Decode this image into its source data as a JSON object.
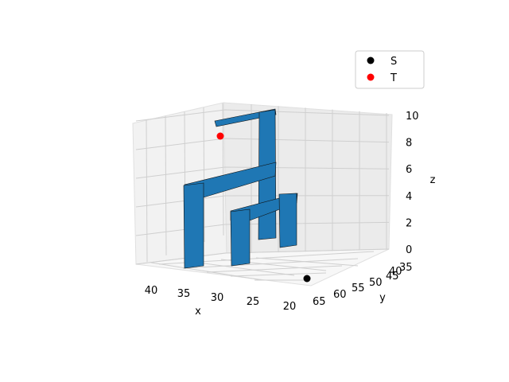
{
  "chart_data": {
    "type": "scatter",
    "projection": "3d",
    "xlabel": "x",
    "ylabel": "y",
    "zlabel": "z",
    "x_ticks": [
      40,
      35,
      30,
      25,
      20
    ],
    "y_ticks": [
      65,
      60,
      55,
      50,
      45,
      40,
      35
    ],
    "z_ticks": [
      0,
      2,
      4,
      6,
      8,
      10
    ],
    "xlim": [
      18,
      42
    ],
    "ylim": [
      35,
      66
    ],
    "zlim": [
      0,
      10
    ],
    "grid": true,
    "legend": {
      "placement": "top-right",
      "entries": [
        "S",
        "T"
      ]
    },
    "series": [
      {
        "name": "S",
        "color": "#000000",
        "points": [
          {
            "x": 20,
            "y": 62,
            "z": 0
          }
        ]
      },
      {
        "name": "T",
        "color": "#ff0000",
        "points": [
          {
            "x": 35,
            "y": 40,
            "z": 9
          }
        ]
      }
    ],
    "structure_color": "#1f77b4"
  }
}
